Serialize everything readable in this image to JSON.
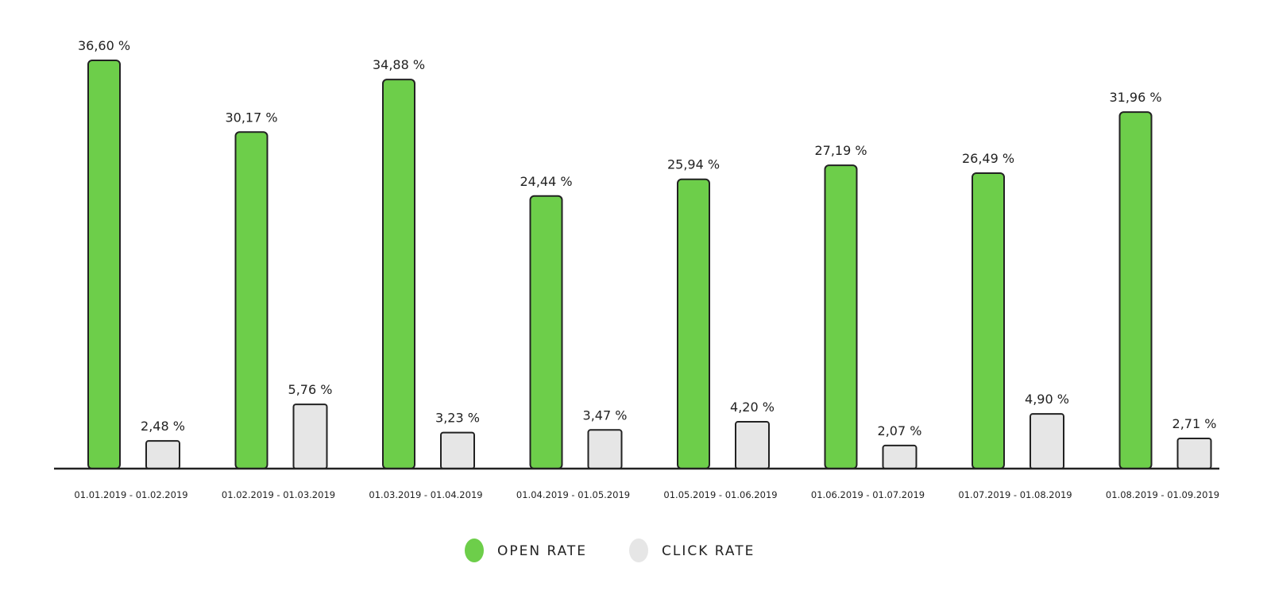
{
  "chart_data": {
    "type": "bar",
    "categories": [
      "01.01.2019 - 01.02.2019",
      "01.02.2019 - 01.03.2019",
      "01.03.2019 - 01.04.2019",
      "01.04.2019 - 01.05.2019",
      "01.05.2019 - 01.06.2019",
      "01.06.2019 - 01.07.2019",
      "01.07.2019 - 01.08.2019",
      "01.08.2019 - 01.09.2019"
    ],
    "series": [
      {
        "name": "OPEN RATE",
        "color": "#6dce4a",
        "values": [
          36.6,
          30.17,
          34.88,
          24.44,
          25.94,
          27.19,
          26.49,
          31.96
        ],
        "labels": [
          "36,60 %",
          "30,17 %",
          "34,88 %",
          "24,44 %",
          "25,94 %",
          "27,19 %",
          "26,49 %",
          "31,96 %"
        ]
      },
      {
        "name": "CLICK RATE",
        "color": "#e6e6e6",
        "values": [
          2.48,
          5.76,
          3.23,
          3.47,
          4.2,
          2.07,
          4.9,
          2.71
        ],
        "labels": [
          "2,48 %",
          "5,76 %",
          "3,23 %",
          "3,47 %",
          "4,20 %",
          "2,07 %",
          "4,90 %",
          "2,71 %"
        ]
      }
    ],
    "ylim": [
      0,
      36.6
    ],
    "grid": false,
    "legend_position": "bottom-center",
    "title": "",
    "xlabel": "",
    "ylabel": ""
  }
}
